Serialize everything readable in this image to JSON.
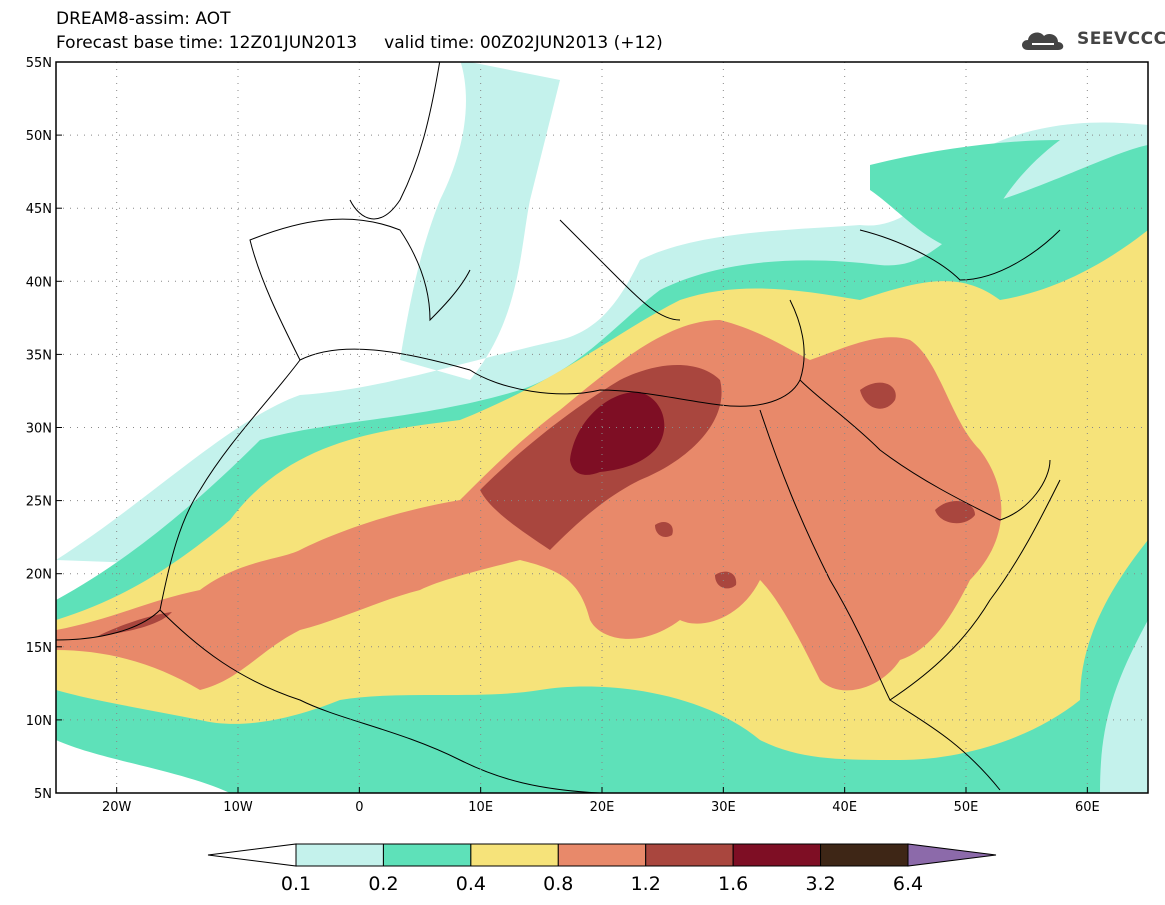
{
  "header": {
    "title": "DREAM8-assim: AOT",
    "subtitle": "Forecast base time: 12Z01JUN2013     valid time: 00Z02JUN2013 (+12)"
  },
  "logo": {
    "text": "SEEVCCC",
    "icon": "cloud-logo-icon"
  },
  "map": {
    "lat_labels": [
      "55N",
      "50N",
      "45N",
      "40N",
      "35N",
      "30N",
      "25N",
      "20N",
      "15N",
      "10N",
      "5N"
    ],
    "lon_labels": [
      "20W",
      "10W",
      "0",
      "10E",
      "20E",
      "30E",
      "40E",
      "50E",
      "60E"
    ],
    "lon_range": [
      -25,
      65
    ],
    "lat_range": [
      5,
      55
    ]
  },
  "colorbar": {
    "levels": [
      "0.1",
      "0.2",
      "0.4",
      "0.8",
      "1.2",
      "1.6",
      "3.2",
      "6.4"
    ],
    "colors": [
      "#ffffff",
      "#c4f2ec",
      "#5ee1b9",
      "#f6e37a",
      "#e8896a",
      "#a9463e",
      "#7e0e24",
      "#3e2616",
      "#8c6aaa"
    ]
  }
}
